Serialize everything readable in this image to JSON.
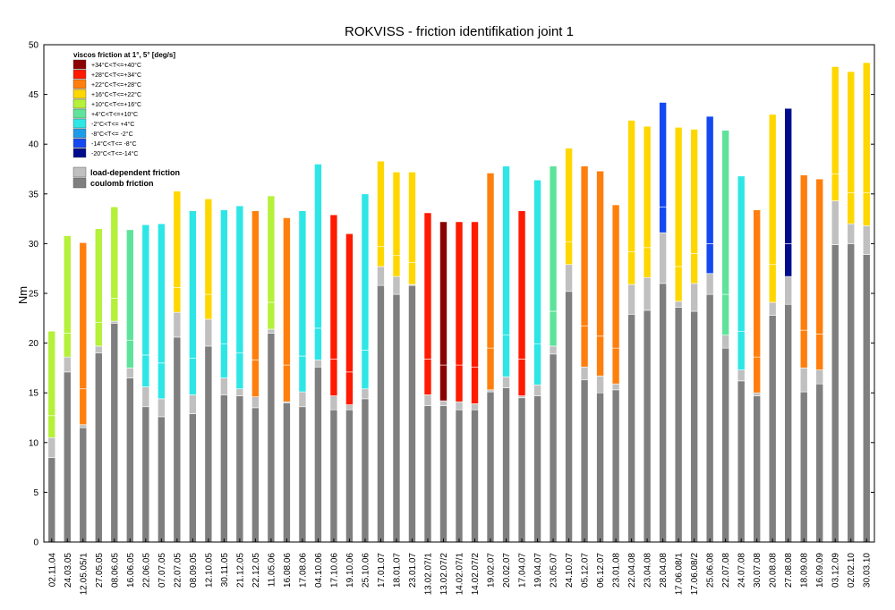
{
  "chart_data": {
    "type": "bar",
    "title": "ROKVISS - friction identifikation joint 1",
    "ylabel": "Nm",
    "xlabel": "",
    "ylim": [
      0,
      50
    ],
    "yticks": [
      0,
      5,
      10,
      15,
      20,
      25,
      30,
      35,
      40,
      45,
      50
    ],
    "grid": false,
    "legend_placement": "top-left",
    "stacking": "stacked",
    "categories": [
      "02.11.04",
      "24.03.05",
      "12.05.05/1",
      "27.05.05",
      "08.06.05",
      "16.06.05",
      "22.06.05",
      "07.07.05",
      "22.07.05",
      "08.09.05",
      "12.10.05",
      "30.11.05",
      "21.12.05",
      "22.12.05",
      "11.05.06",
      "16.08.06",
      "17.08.06",
      "04.10.06",
      "17.10.06",
      "19.10.06",
      "25.10.06",
      "17.01.07",
      "18.01.07",
      "23.01.07",
      "13.02.07/1",
      "13.02.07/2",
      "14.02.07/1",
      "14.02.07/2",
      "19.02.07",
      "20.02.07",
      "17.04.07",
      "19.04.07",
      "23.05.07",
      "24.10.07",
      "05.12.07",
      "06.12.07",
      "23.01.08",
      "22.04.08",
      "23.04.08",
      "28.04.08",
      "17.06.08/1",
      "17.06.08/2",
      "25.06.08",
      "22.07.08",
      "24.07.08",
      "30.07.08",
      "20.08.08",
      "27.08.08",
      "18.09.08",
      "16.09.09",
      "03.12.09",
      "02.02.10",
      "30.03.10"
    ],
    "series": [
      {
        "name": "coulomb friction",
        "color": "#7f7f7f",
        "values": [
          8.5,
          17.1,
          11.5,
          19.0,
          22.0,
          16.5,
          13.6,
          12.6,
          20.6,
          12.9,
          19.7,
          14.8,
          14.7,
          13.5,
          21.0,
          14.0,
          13.6,
          17.6,
          13.3,
          13.3,
          14.4,
          25.8,
          24.9,
          25.8,
          13.7,
          13.7,
          13.3,
          13.3,
          15.1,
          15.5,
          14.5,
          14.7,
          18.9,
          25.2,
          16.3,
          15.0,
          15.3,
          22.9,
          23.3,
          26.0,
          23.6,
          23.2,
          24.9,
          19.5,
          16.2,
          14.7,
          22.8,
          23.9,
          15.1,
          15.9,
          29.9,
          30.0,
          28.9
        ]
      },
      {
        "name": "load-dependent friction",
        "color": "#c0c0c0",
        "values": [
          2.0,
          1.5,
          0.3,
          0.7,
          0.2,
          1.0,
          2.0,
          1.8,
          2.5,
          1.9,
          2.7,
          1.7,
          0.7,
          1.1,
          0.4,
          0.1,
          1.5,
          0.7,
          1.4,
          0.5,
          1.0,
          1.9,
          1.8,
          0.1,
          1.1,
          0.5,
          0.8,
          0.6,
          0.2,
          1.1,
          0.2,
          1.1,
          0.8,
          2.7,
          1.3,
          1.7,
          0.6,
          3.0,
          3.3,
          5.1,
          0.6,
          2.8,
          2.1,
          1.3,
          1.1,
          0.3,
          1.3,
          2.8,
          2.4,
          1.4,
          4.4,
          2.0,
          2.9
        ]
      },
      {
        "name": "viscous friction at 1°",
        "values": [
          2.2,
          2.4,
          3.6,
          2.4,
          2.3,
          2.8,
          3.2,
          3.6,
          2.5,
          3.7,
          2.5,
          3.4,
          3.6,
          3.7,
          2.7,
          3.7,
          3.6,
          3.2,
          3.7,
          3.3,
          3.9,
          2.0,
          2.1,
          2.2,
          3.6,
          3.6,
          3.7,
          3.7,
          4.2,
          4.2,
          3.7,
          4.1,
          3.5,
          2.3,
          4.1,
          4.0,
          3.6,
          3.3,
          3.0,
          2.6,
          3.5,
          3.0,
          3.0,
          4.1,
          3.9,
          3.6,
          3.8,
          3.3,
          3.8,
          3.6,
          2.7,
          3.1,
          3.3
        ]
      },
      {
        "name": "viscous friction at 5°",
        "values": [
          8.5,
          9.8,
          14.7,
          9.4,
          9.2,
          11.1,
          13.1,
          14.0,
          10.2,
          14.8,
          9.6,
          13.5,
          14.8,
          15.0,
          10.7,
          14.8,
          14.6,
          16.5,
          14.5,
          13.9,
          15.7,
          8.6,
          8.4,
          9.1,
          14.7,
          14.4,
          14.4,
          14.6,
          17.6,
          17.0,
          14.9,
          16.5,
          14.6,
          9.4,
          16.1,
          16.6,
          14.4,
          13.2,
          12.2,
          10.5,
          14.0,
          12.5,
          12.8,
          16.5,
          15.6,
          14.8,
          15.1,
          13.6,
          15.6,
          15.6,
          10.8,
          12.2,
          13.1
        ]
      }
    ],
    "temperature_class": [
      4,
      4,
      2,
      4,
      4,
      5,
      6,
      6,
      3,
      6,
      3,
      6,
      6,
      2,
      4,
      2,
      6,
      6,
      1,
      1,
      6,
      3,
      3,
      3,
      1,
      0,
      1,
      1,
      2,
      6,
      1,
      6,
      5,
      3,
      2,
      2,
      2,
      3,
      3,
      8,
      3,
      3,
      8,
      5,
      6,
      2,
      3,
      9,
      2,
      2,
      3,
      3,
      3
    ],
    "legend": {
      "title": "viscos friction at 1°, 5° [deg/s]",
      "temperature_entries": [
        {
          "label": "+34°C<T<=+40°C",
          "color": "#8b0000"
        },
        {
          "label": "+28°C<T<=+34°C",
          "color": "#ff1a00"
        },
        {
          "label": "+22°C<T<=+28°C",
          "color": "#ff7f0e"
        },
        {
          "label": "+16°C<T<=+22°C",
          "color": "#ffd700"
        },
        {
          "label": "+10°C<T<=+16°C",
          "color": "#b5f03a"
        },
        {
          "label": "+4°C<T<=+10°C",
          "color": "#5fe39a"
        },
        {
          "label": "-2°C<T<= +4°C",
          "color": "#2ee6e6"
        },
        {
          "label": "-8°C<T<= -2°C",
          "color": "#1e9be8"
        },
        {
          "label": "-14°C<T<= -8°C",
          "color": "#1448f0"
        },
        {
          "label": "-20°C<T<=-14°C",
          "color": "#000c8c"
        }
      ],
      "friction_entries": [
        {
          "label": "load-dependent friction",
          "color": "#c0c0c0"
        },
        {
          "label": "coulomb friction",
          "color": "#7f7f7f"
        }
      ]
    }
  }
}
